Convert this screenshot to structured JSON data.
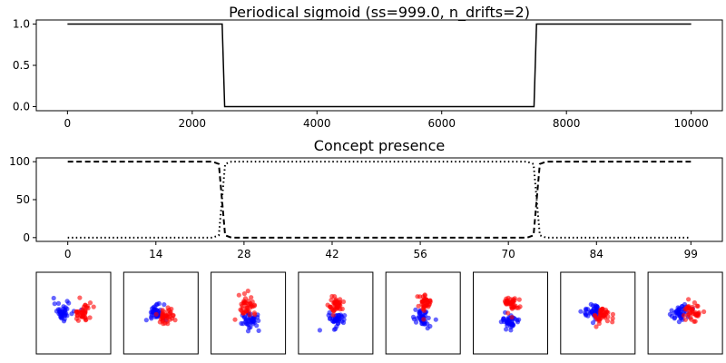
{
  "chart_data": [
    {
      "type": "line",
      "title": "Periodical sigmoid (ss=999.0, n_drifts=2)",
      "xlim": [
        -500,
        10500
      ],
      "ylim": [
        -0.05,
        1.05
      ],
      "xticks": [
        0,
        2000,
        4000,
        6000,
        8000,
        10000
      ],
      "xtick_labels": [
        "0",
        "2000",
        "4000",
        "6000",
        "8000",
        "10000"
      ],
      "yticks": [
        0.0,
        0.5,
        1.0
      ],
      "ytick_labels": [
        "0.0",
        "0.5",
        "1.0"
      ],
      "series": [
        {
          "color": "#000000",
          "style": "solid",
          "x": [
            0,
            2480,
            2500,
            2520,
            7480,
            7500,
            7520,
            10000
          ],
          "y": [
            1,
            1,
            0.5,
            0,
            0,
            0.5,
            1,
            1
          ]
        }
      ]
    },
    {
      "type": "line",
      "title": "Concept presence",
      "xlim": [
        -5,
        104
      ],
      "ylim": [
        -5,
        105
      ],
      "xticks": [
        0,
        14,
        28,
        42,
        56,
        70,
        84,
        99
      ],
      "xtick_labels": [
        "0",
        "14",
        "28",
        "42",
        "56",
        "70",
        "84",
        "99"
      ],
      "yticks": [
        0,
        50,
        100
      ],
      "ytick_labels": [
        "0",
        "50",
        "100"
      ],
      "series": [
        {
          "color": "#000000",
          "style": "dashed",
          "x": [
            0,
            23,
            24,
            25,
            26,
            73,
            74,
            75,
            76,
            99
          ],
          "y": [
            100,
            100,
            97,
            3,
            0,
            0,
            3,
            97,
            100,
            100
          ]
        },
        {
          "color": "#000000",
          "style": "dotted",
          "x": [
            0,
            23,
            24,
            25,
            26,
            73,
            74,
            75,
            76,
            99
          ],
          "y": [
            0,
            0,
            3,
            97,
            100,
            100,
            97,
            3,
            0,
            0
          ]
        }
      ]
    },
    {
      "type": "scatter",
      "panels": 8,
      "colors": {
        "class_a": "#0000ff",
        "class_b": "#ff0000"
      },
      "clusters": [
        {
          "a": [
            -0.35,
            0.05
          ],
          "b": [
            0.3,
            0.0
          ],
          "spread": 0.16
        },
        {
          "a": [
            -0.2,
            0.0
          ],
          "b": [
            0.2,
            -0.1
          ],
          "spread": 0.16
        },
        {
          "a": [
            0.1,
            -0.25
          ],
          "b": [
            -0.05,
            0.3
          ],
          "spread": 0.15
        },
        {
          "a": [
            0.05,
            -0.25
          ],
          "b": [
            0.0,
            0.3
          ],
          "spread": 0.14
        },
        {
          "a": [
            0.0,
            -0.2
          ],
          "b": [
            0.05,
            0.35
          ],
          "spread": 0.14
        },
        {
          "a": [
            0.0,
            -0.3
          ],
          "b": [
            0.05,
            0.3
          ],
          "spread": 0.14
        },
        {
          "a": [
            -0.2,
            0.05
          ],
          "b": [
            0.15,
            -0.05
          ],
          "spread": 0.16
        },
        {
          "a": [
            -0.15,
            0.0
          ],
          "b": [
            0.25,
            0.05
          ],
          "spread": 0.15
        }
      ]
    }
  ]
}
